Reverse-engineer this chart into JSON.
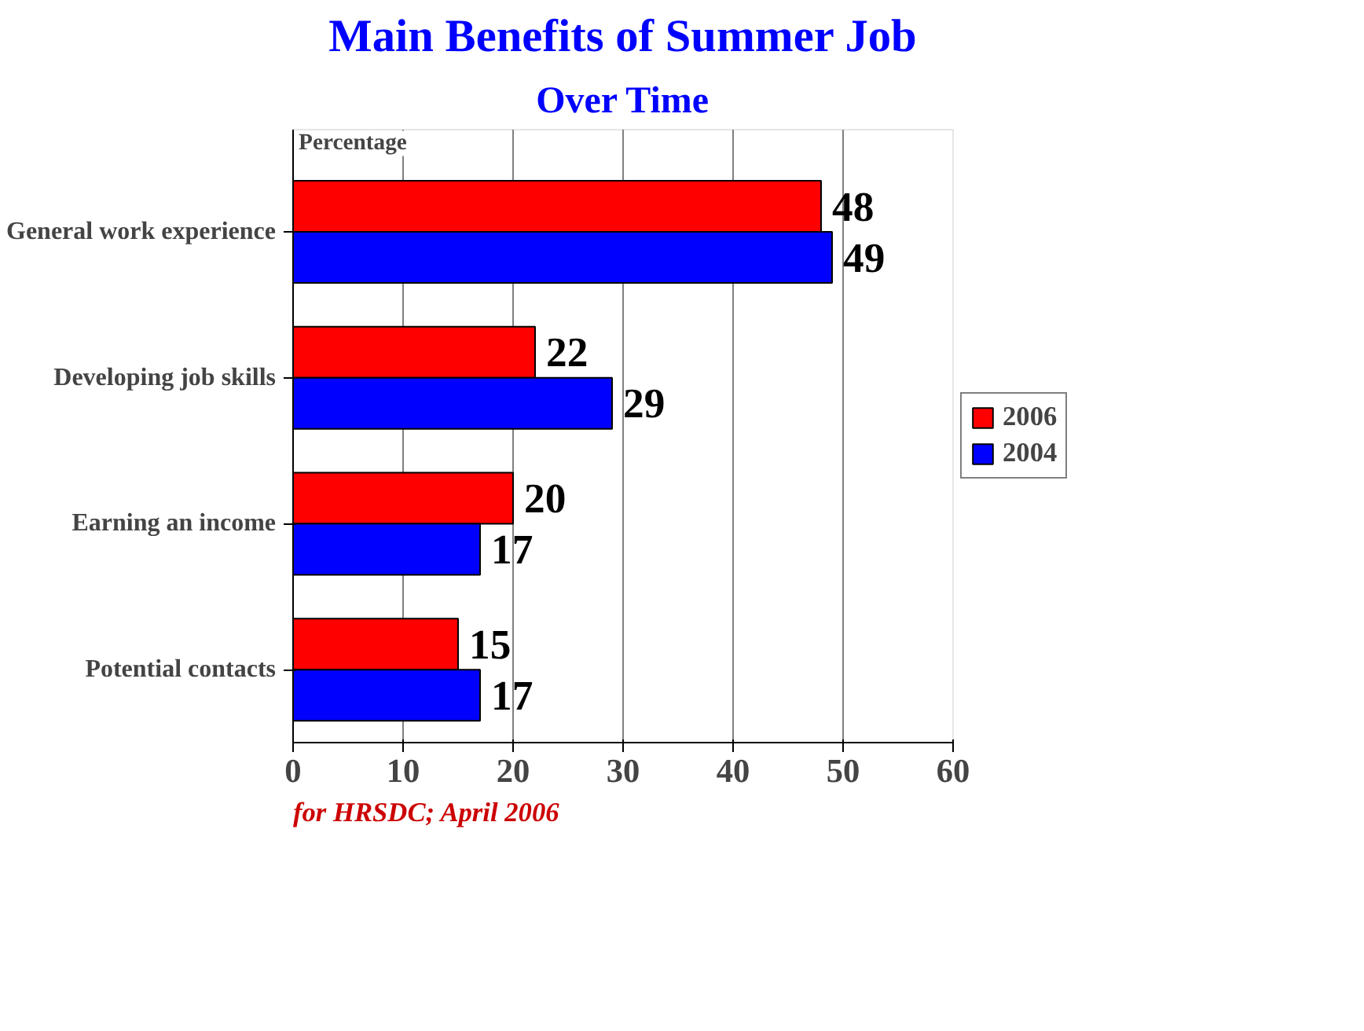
{
  "chart_data": {
    "type": "bar",
    "orientation": "horizontal",
    "title": "Main Benefits of Summer Job",
    "subtitle": "Over Time",
    "xlabel": "Percentage",
    "categories": [
      "General work experience",
      "Developing job skills",
      "Earning an income",
      "Potential contacts"
    ],
    "series": [
      {
        "name": "2006",
        "color": "#ff0000",
        "values": [
          48,
          22,
          20,
          15
        ]
      },
      {
        "name": "2004",
        "color": "#0000ff",
        "values": [
          49,
          29,
          17,
          17
        ]
      }
    ],
    "xlim": [
      0,
      60
    ],
    "xticks": [
      0,
      10,
      20,
      30,
      40,
      50,
      60
    ],
    "grid": "x",
    "legend": "right",
    "data_labels": true,
    "annotations": [
      "for HRSDC; April 2006"
    ]
  }
}
